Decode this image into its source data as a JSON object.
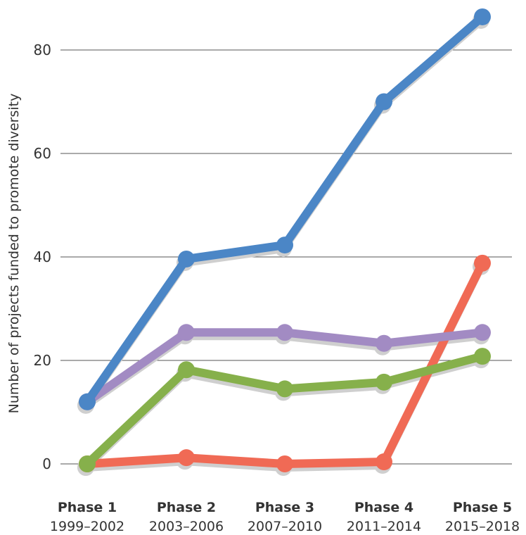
{
  "chart_data": {
    "type": "line",
    "title": "",
    "xlabel": "",
    "ylabel": "Number of projects funded to promote diversity",
    "ylim": [
      0,
      90
    ],
    "yticks": [
      0,
      20,
      40,
      60,
      80
    ],
    "grid": true,
    "categories": [
      {
        "name": "Phase 1",
        "years": "1999–2002"
      },
      {
        "name": "Phase 2",
        "years": "2003–2006"
      },
      {
        "name": "Phase 3",
        "years": "2007–2010"
      },
      {
        "name": "Phase 4",
        "years": "2011–2014"
      },
      {
        "name": "Phase 5",
        "years": "2015–2018"
      }
    ],
    "series": [
      {
        "color": "#f06a55",
        "values": [
          0,
          1.2,
          0,
          0.4,
          38.8
        ]
      },
      {
        "color": "#86b04b",
        "values": [
          0,
          18.2,
          14.5,
          15.8,
          20.8
        ]
      },
      {
        "color": "#a28bc3",
        "values": [
          12,
          25.4,
          25.4,
          23.3,
          25.4
        ]
      },
      {
        "color": "#4b86c6",
        "values": [
          12,
          39.6,
          42.3,
          70,
          86.4
        ]
      }
    ]
  }
}
